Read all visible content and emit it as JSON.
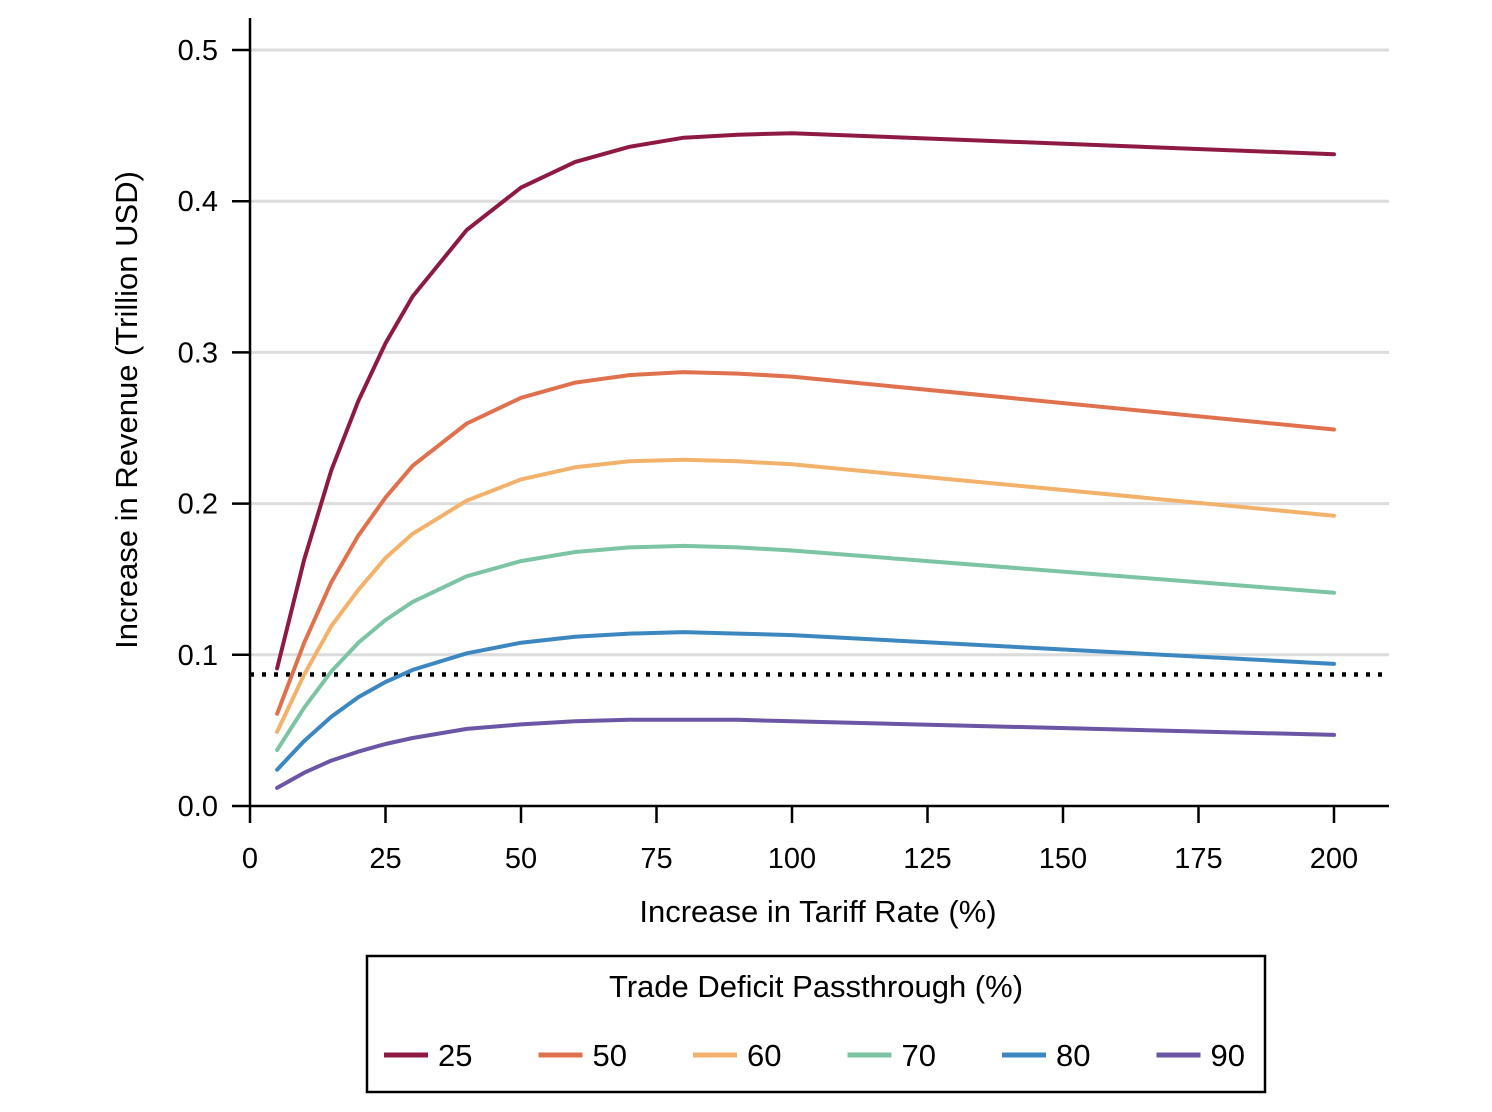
{
  "chart_data": {
    "type": "line",
    "xlabel": "Increase in Tariff Rate (%)",
    "ylabel": "Increase in Revenue (Trillion USD)",
    "xlim": [
      0,
      210
    ],
    "ylim": [
      0,
      0.5
    ],
    "x_ticks": [
      "0",
      "25",
      "50",
      "75",
      "100",
      "125",
      "150",
      "175",
      "200"
    ],
    "y_ticks": [
      "0.0",
      "0.1",
      "0.2",
      "0.3",
      "0.4",
      "0.5"
    ],
    "grid": "horizontal",
    "reference_line": {
      "y": 0.087,
      "style": "dotted",
      "color": "#000000"
    },
    "legend": {
      "title": "Trade Deficit Passthrough (%)",
      "placement": "bottom"
    },
    "x": [
      5,
      10,
      15,
      20,
      25,
      30,
      40,
      50,
      60,
      70,
      80,
      90,
      100,
      200
    ],
    "series": [
      {
        "name": "25",
        "color": "#8e1a44",
        "values": [
          0.091,
          0.163,
          0.222,
          0.268,
          0.306,
          0.337,
          0.381,
          0.409,
          0.426,
          0.436,
          0.442,
          0.444,
          0.445,
          0.431
        ]
      },
      {
        "name": "50",
        "color": "#e0714f",
        "values": [
          0.061,
          0.108,
          0.148,
          0.179,
          0.204,
          0.225,
          0.253,
          0.27,
          0.28,
          0.285,
          0.287,
          0.286,
          0.284,
          0.249
        ]
      },
      {
        "name": "60",
        "color": "#f2b26c",
        "values": [
          0.049,
          0.087,
          0.119,
          0.143,
          0.164,
          0.18,
          0.202,
          0.216,
          0.224,
          0.228,
          0.229,
          0.228,
          0.226,
          0.192
        ]
      },
      {
        "name": "70",
        "color": "#7cc4a4",
        "values": [
          0.037,
          0.065,
          0.089,
          0.108,
          0.123,
          0.135,
          0.152,
          0.162,
          0.168,
          0.171,
          0.172,
          0.171,
          0.169,
          0.141
        ]
      },
      {
        "name": "80",
        "color": "#3c87c0",
        "values": [
          0.024,
          0.043,
          0.059,
          0.072,
          0.082,
          0.09,
          0.101,
          0.108,
          0.112,
          0.114,
          0.115,
          0.114,
          0.113,
          0.094
        ]
      },
      {
        "name": "90",
        "color": "#6a56a5",
        "values": [
          0.012,
          0.022,
          0.03,
          0.036,
          0.041,
          0.045,
          0.051,
          0.054,
          0.056,
          0.057,
          0.057,
          0.057,
          0.056,
          0.047
        ]
      }
    ]
  }
}
